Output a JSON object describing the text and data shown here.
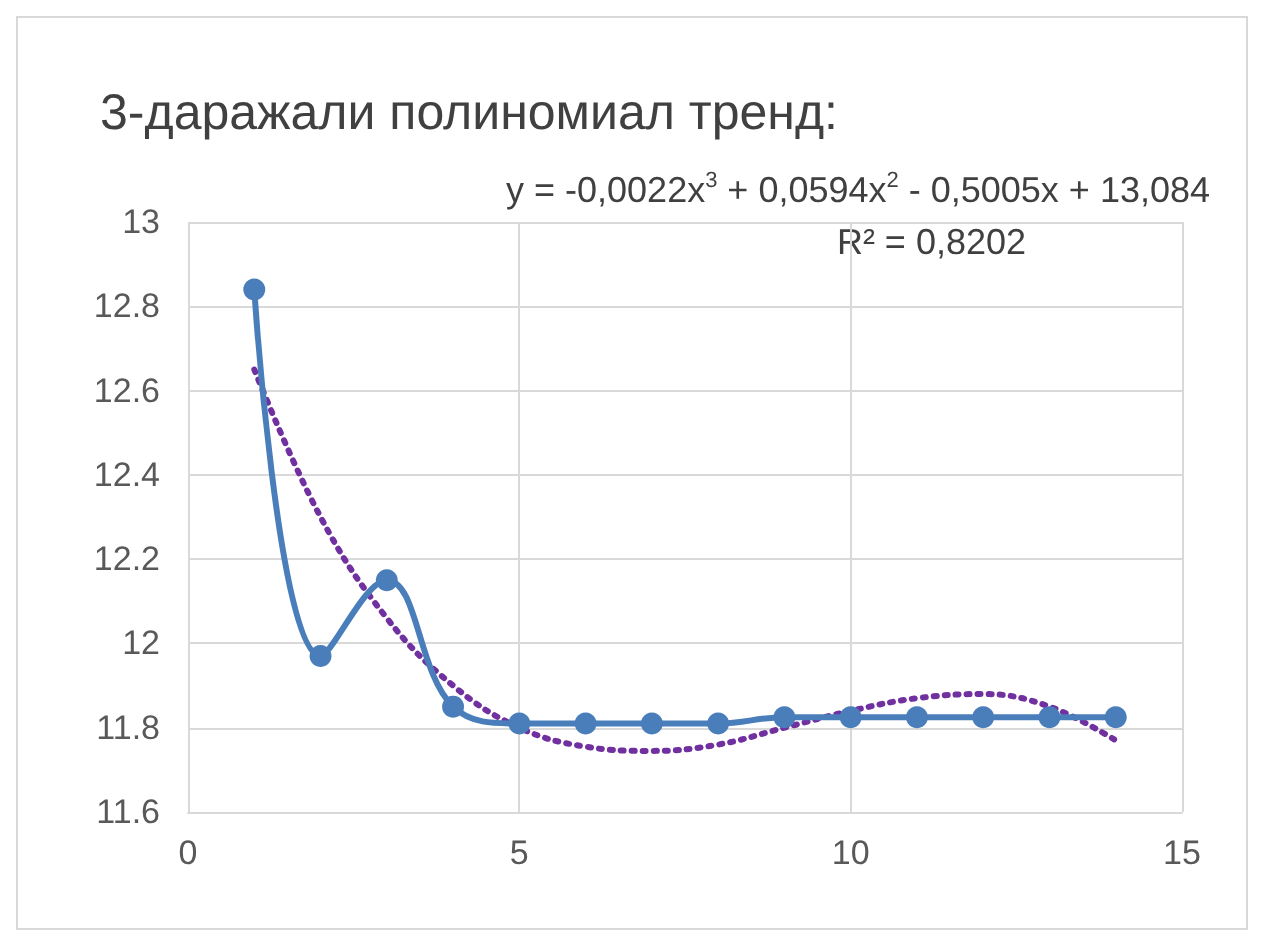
{
  "chart_data": {
    "type": "line",
    "title": "3-даражали полиномиал тренд:",
    "annotations": [
      "y = -0,0022x$^{3}$ + 0,0594x$^{2}$ - 0,5005x + 13,084",
      "R² = 0,8202"
    ],
    "x": [
      1,
      2,
      3,
      4,
      5,
      6,
      7,
      8,
      9,
      10,
      11,
      12,
      13,
      14
    ],
    "series": [
      {
        "color": "#4a7ebb",
        "values": [
          12.84,
          11.97,
          12.15,
          11.85,
          11.81,
          11.81,
          11.81,
          11.81,
          11.825,
          11.825,
          11.825,
          11.825,
          11.825,
          11.825
        ]
      },
      {
        "color": "#7030a0",
        "marker": "none",
        "line_style": "dotted",
        "values": [
          12.65,
          12.3,
          12.06,
          11.9,
          11.8,
          11.755,
          11.745,
          11.76,
          11.8,
          11.84,
          11.87,
          11.88,
          11.85,
          11.77
        ]
      }
    ],
    "xlim": [
      0,
      15
    ],
    "xticks": [
      0,
      5,
      10,
      15
    ],
    "ylim": [
      11.6,
      13
    ],
    "yticks": [
      11.6,
      11.8,
      12,
      12.2,
      12.4,
      12.6,
      12.8,
      13
    ],
    "grid": true,
    "marker": "circle",
    "line_style": "solid"
  }
}
